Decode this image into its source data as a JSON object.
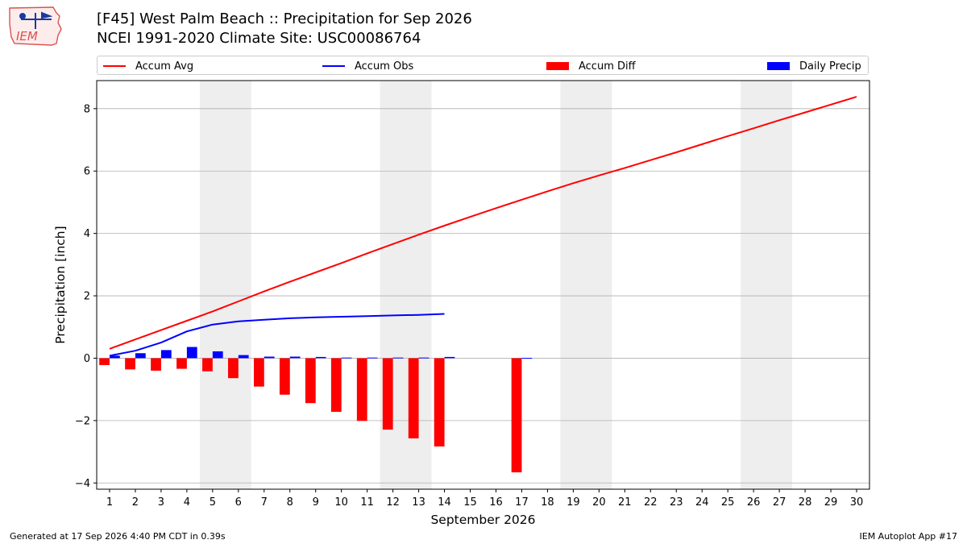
{
  "header": {
    "title_line1": "[F45] West Palm Beach :: Precipitation for Sep 2026",
    "title_line2": "NCEI 1991-2020 Climate Site: USC00086764",
    "logo_text": "IEM"
  },
  "footer": {
    "generated": "Generated at 17 Sep 2026 4:40 PM CDT in 0.39s",
    "app": "IEM Autoplot App #17"
  },
  "colors": {
    "accum_avg": "#ff0000",
    "accum_obs": "#0000ff",
    "accum_diff": "#ff0000",
    "daily_precip": "#0000ff",
    "weekend_shade": "#eeeeee",
    "grid": "#b0b0b0"
  },
  "chart_data": {
    "type": "bar",
    "xlabel": "September 2026",
    "ylabel": "Precipitation [inch]",
    "ylim": [
      -4.2,
      8.9
    ],
    "yticks": [
      -4,
      -2,
      0,
      2,
      4,
      6,
      8
    ],
    "x": [
      1,
      2,
      3,
      4,
      5,
      6,
      7,
      8,
      9,
      10,
      11,
      12,
      13,
      14,
      15,
      16,
      17,
      18,
      19,
      20,
      21,
      22,
      23,
      24,
      25,
      26,
      27,
      28,
      29,
      30
    ],
    "xlim": [
      0.5,
      30.5
    ],
    "weekend_shading": [
      [
        4.5,
        6.5
      ],
      [
        11.5,
        13.5
      ],
      [
        18.5,
        20.5
      ],
      [
        25.5,
        27.5
      ]
    ],
    "grid": "horizontal",
    "legend_placement": "top",
    "series": [
      {
        "name": "Accum Avg",
        "kind": "line",
        "x": [
          1,
          2,
          3,
          4,
          5,
          6,
          7,
          8,
          9,
          10,
          11,
          12,
          13,
          14,
          15,
          16,
          17,
          18,
          19,
          20,
          21,
          22,
          23,
          24,
          25,
          26,
          27,
          28,
          29,
          30
        ],
        "values": [
          0.3,
          0.6,
          0.9,
          1.2,
          1.5,
          1.82,
          2.14,
          2.45,
          2.75,
          3.05,
          3.36,
          3.66,
          3.96,
          4.25,
          4.53,
          4.81,
          5.08,
          5.35,
          5.61,
          5.86,
          6.1,
          6.35,
          6.6,
          6.86,
          7.12,
          7.37,
          7.63,
          7.88,
          8.13,
          8.38
        ]
      },
      {
        "name": "Accum Obs",
        "kind": "line",
        "x": [
          1,
          2,
          3,
          4,
          5,
          6,
          7,
          8,
          9,
          10,
          11,
          12,
          13,
          14
        ],
        "values": [
          0.08,
          0.24,
          0.5,
          0.86,
          1.08,
          1.18,
          1.23,
          1.28,
          1.31,
          1.33,
          1.35,
          1.37,
          1.39,
          1.42
        ]
      },
      {
        "name": "Accum Diff",
        "kind": "bar",
        "x": [
          1,
          2,
          3,
          4,
          5,
          6,
          7,
          8,
          9,
          10,
          11,
          12,
          13,
          14,
          17
        ],
        "values": [
          -0.22,
          -0.36,
          -0.4,
          -0.34,
          -0.42,
          -0.64,
          -0.91,
          -1.17,
          -1.44,
          -1.72,
          -2.01,
          -2.29,
          -2.57,
          -2.83,
          -3.66
        ]
      },
      {
        "name": "Daily Precip",
        "kind": "bar",
        "x": [
          1,
          2,
          3,
          4,
          5,
          6,
          7,
          8,
          9,
          10,
          11,
          12,
          13,
          14,
          17
        ],
        "values": [
          0.08,
          0.16,
          0.26,
          0.36,
          0.22,
          0.1,
          0.05,
          0.05,
          0.04,
          0.02,
          0.02,
          0.02,
          0.02,
          0.04,
          0.01
        ]
      }
    ]
  }
}
